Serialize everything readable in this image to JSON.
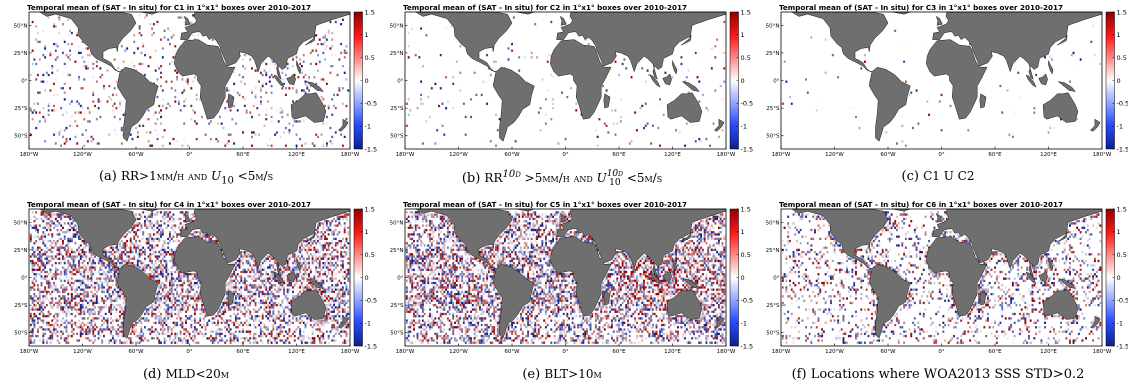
{
  "panels": [
    {
      "title": "Temporal mean of (SAT - In situ) for C1 in 1°x1° boxes over 2010-2017",
      "caption_label": "(a)",
      "caption_parts": [
        "RR>1mm/h and ",
        "U",
        "10",
        " <5m/s"
      ],
      "density": 0.1,
      "coastal": 0.04
    },
    {
      "title": "Temporal mean of (SAT - In situ) for C2 in 1°x1° boxes over 2010-2017",
      "caption_label": "(b)",
      "caption_parts": [
        "RR",
        "10d",
        " >5mm/h and ",
        "U",
        "10d",
        "10",
        " <5m/s"
      ],
      "density": 0.03,
      "coastal": 0.01
    },
    {
      "title": "Temporal mean of (SAT - In situ) for C3 in 1°x1° boxes over 2010-2017",
      "caption_label": "(c)",
      "caption_parts": [
        "C1 U C2"
      ],
      "density": 0.01,
      "coastal": 0.005
    },
    {
      "title": "Temporal mean of (SAT - In situ) for C4 in 1°x1° boxes over 2010-2017",
      "caption_label": "(d)",
      "caption_parts": [
        "MLD<20m"
      ],
      "density": 0.55,
      "coastal": 0.5
    },
    {
      "title": "Temporal mean of (SAT - In situ) for C5 in 1°x1° boxes over 2010-2017",
      "caption_label": "(e)",
      "caption_parts": [
        "BLT>10m"
      ],
      "density": 0.62,
      "coastal": 0.45
    },
    {
      "title": "Temporal mean of (SAT - In situ) for C6 in 1°x1° boxes over 2010-2017",
      "caption_label": "(f)",
      "caption_parts": [
        "Locations where WOA2013 SSS STD>0.2"
      ],
      "density": 0.22,
      "coastal": 0.55
    }
  ],
  "axes": {
    "x_ticks": [
      "180°W",
      "120°W",
      "60°W",
      "0°",
      "60°E",
      "120°E",
      "180°W"
    ],
    "y_ticks": [
      "50°N",
      "25°N",
      "0°",
      "25°S",
      "50°S"
    ]
  },
  "colorbar": {
    "ticks": [
      "1.5",
      "1",
      "0.5",
      "0",
      "-0.5",
      "-1",
      "-1.5"
    ],
    "range": [
      -1.5,
      1.5
    ],
    "colors": {
      "low": "#0b1f8f",
      "mid": "#ffffff",
      "high": "#8f0000"
    }
  },
  "colors": {
    "land": "#6f6f6f",
    "coast": "#1a1a1a",
    "frame": "#000000"
  }
}
